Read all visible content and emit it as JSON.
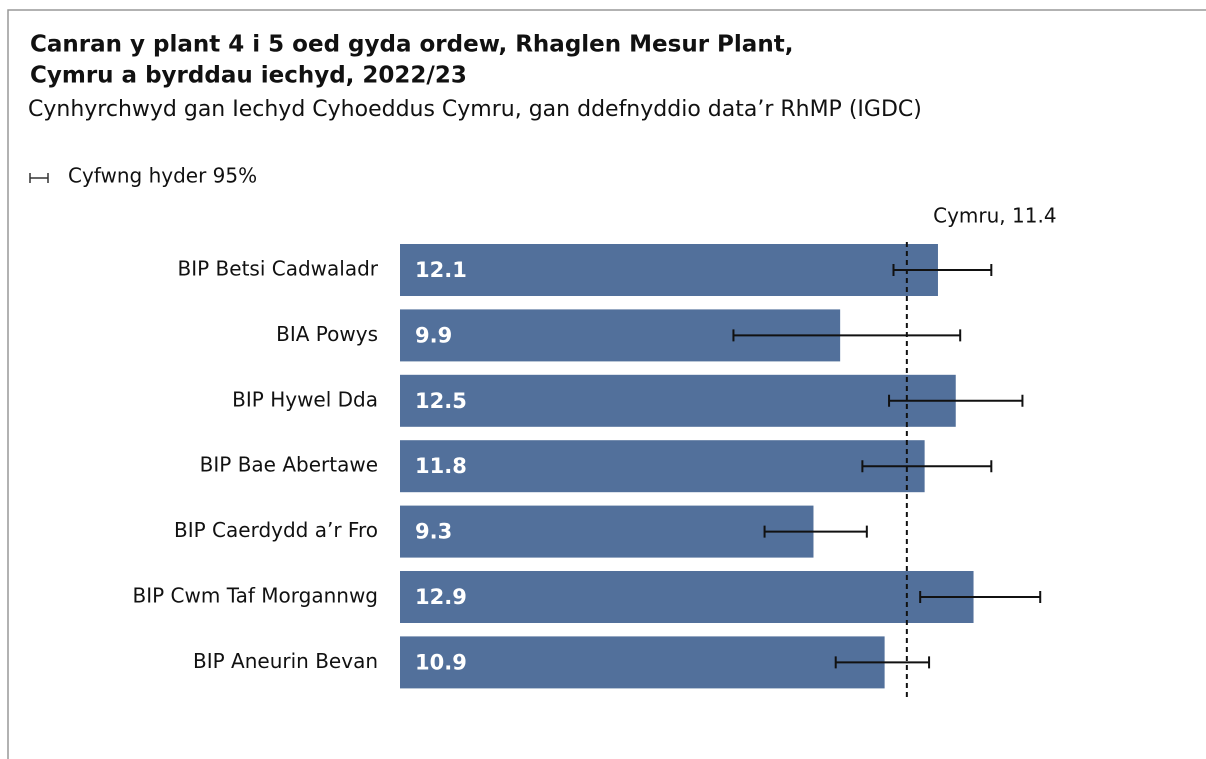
{
  "chart_data": {
    "type": "bar",
    "orientation": "horizontal",
    "title": [
      "Canran y plant 4 i 5 oed gyda ordew, Rhaglen Mesur Plant,",
      "Cymru a byrddau iechyd, 2022/23"
    ],
    "subtitle": "Cynhyrchwyd gan Iechyd Cyhoeddus Cymru, gan ddefnyddio data’r RhMP (IGDC)",
    "legend_label": "Cyfwng hyder 95%",
    "categories": [
      "BIP Betsi Cadwaladr",
      "BIA Powys",
      "BIP Hywel Dda",
      "BIP Bae Abertawe",
      "BIP Caerdydd a’r Fro",
      "BIP Cwm Taf Morgannwg",
      "BIP Aneurin Bevan"
    ],
    "series": [
      {
        "name": "Canran",
        "color": "#52709b",
        "values": [
          12.1,
          9.9,
          12.5,
          11.8,
          9.3,
          12.9,
          10.9
        ],
        "ci_lower": [
          11.1,
          7.5,
          11.0,
          10.4,
          8.2,
          11.7,
          9.8
        ],
        "ci_upper": [
          13.3,
          12.6,
          14.0,
          13.3,
          10.5,
          14.4,
          11.9
        ]
      }
    ],
    "reference_value": 11.4,
    "reference_label": "Cymru, 11.4"
  }
}
